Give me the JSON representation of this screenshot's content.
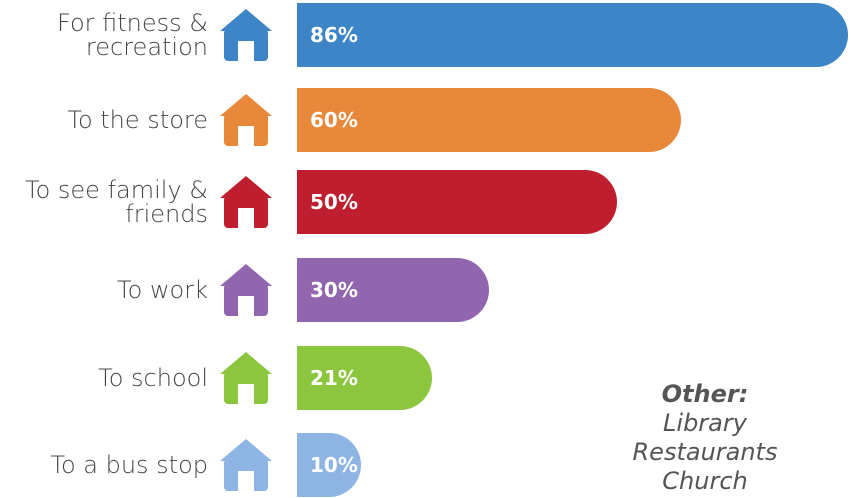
{
  "chart_data": {
    "type": "bar",
    "orientation": "horizontal",
    "categories": [
      "For fitness & recreation",
      "To the store",
      "To see family & friends",
      "To work",
      "To school",
      "To a bus stop"
    ],
    "values": [
      86,
      60,
      50,
      30,
      21,
      10
    ],
    "value_labels": [
      "86%",
      "60%",
      "50%",
      "30%",
      "21%",
      "10%"
    ],
    "colors": [
      "#3d85c6",
      "#e8883a",
      "#be1e2d",
      "#9266ae",
      "#8cc63f",
      "#8db4e2"
    ],
    "annotation": {
      "title": "Other:",
      "items": [
        "Library",
        "Restaurants",
        "Church"
      ]
    }
  }
}
